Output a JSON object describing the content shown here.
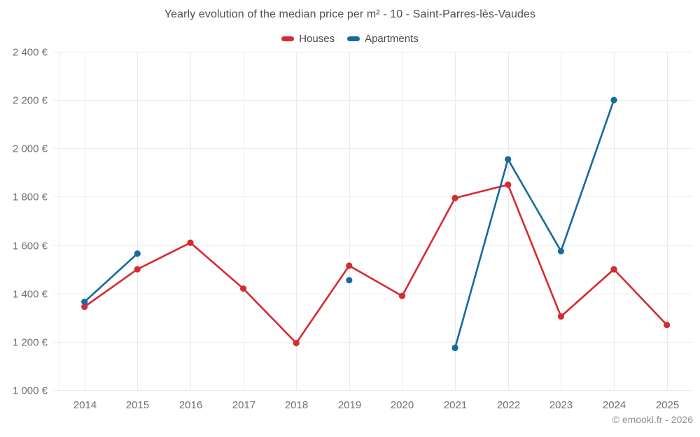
{
  "title": "Yearly evolution of the median price per m² - 10 - Saint-Parres-lès-Vaudes",
  "footer": {
    "text": "© emooki.fr - 2026"
  },
  "colors": {
    "houses": "#d62b31",
    "apartments": "#17699e",
    "grid": "#ebebeb",
    "tick_text": "#707070",
    "title_text": "#4d4d4d",
    "footer_text": "#8f8f8f"
  },
  "chart_data": {
    "type": "line",
    "title": "Yearly evolution of the median price per m² - 10 - Saint-Parres-lès-Vaudes",
    "xlabel": "",
    "ylabel": "",
    "grid": true,
    "legend_position": "top",
    "categories": [
      "2014",
      "2015",
      "2016",
      "2017",
      "2018",
      "2019",
      "2020",
      "2021",
      "2022",
      "2023",
      "2024",
      "2025"
    ],
    "series": [
      {
        "name": "Houses",
        "color": "#d62b31",
        "values": [
          1345,
          1500,
          1610,
          1420,
          1195,
          1515,
          1390,
          1795,
          1850,
          1305,
          1500,
          1270
        ]
      },
      {
        "name": "Apartments",
        "color": "#17699e",
        "values": [
          1365,
          1565,
          null,
          null,
          null,
          1455,
          null,
          1175,
          1955,
          1575,
          2200,
          null
        ]
      }
    ],
    "ylim": [
      1000,
      2400
    ],
    "ytick_step": 200,
    "yticks": [
      {
        "value": 1000,
        "label": "1 000 €"
      },
      {
        "value": 1200,
        "label": "1 200 €"
      },
      {
        "value": 1400,
        "label": "1 400 €"
      },
      {
        "value": 1600,
        "label": "1 600 €"
      },
      {
        "value": 1800,
        "label": "1 800 €"
      },
      {
        "value": 2000,
        "label": "2 000 €"
      },
      {
        "value": 2200,
        "label": "2 200 €"
      },
      {
        "value": 2400,
        "label": "2 400 €"
      }
    ]
  }
}
